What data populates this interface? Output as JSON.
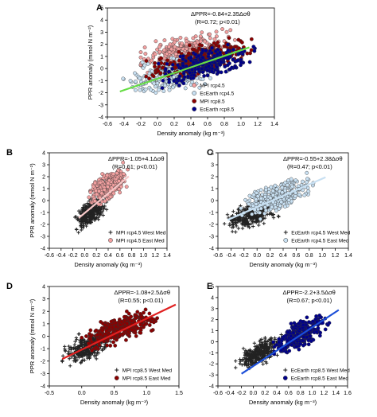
{
  "chart_data": [
    {
      "panel": "A",
      "type": "scatter",
      "xlabel": "Density anomaly (kg m⁻³)",
      "ylabel": "PPR anomaly (mmol N m⁻²)",
      "xlim": [
        -0.6,
        1.4
      ],
      "ylim": [
        -4,
        5
      ],
      "xticks": [
        -0.6,
        -0.4,
        -0.2,
        0.0,
        0.2,
        0.4,
        0.6,
        0.8,
        1.0,
        1.2,
        1.4
      ],
      "yticks": [
        -4,
        -3,
        -2,
        -1,
        0,
        1,
        2,
        3,
        4,
        5
      ],
      "equation": "ΔPPR=-0.84+2.35Δσθ",
      "stats": "(R=0.72; p<0.01)",
      "legend_position": "bottom-right",
      "series": [
        {
          "name": "MPI rcp4.5",
          "marker": "circle",
          "color": "#f2a0a0",
          "x_range": [
            -0.2,
            1.1
          ],
          "center": [
            0.3,
            1.4
          ],
          "spread": 1.0
        },
        {
          "name": "EcEarth rcp4.5",
          "marker": "circle",
          "color": "#c8e0f2",
          "x_range": [
            -0.5,
            0.9
          ],
          "center": [
            0.2,
            -0.5
          ],
          "spread": 1.1
        },
        {
          "name": "MPI rcp8.5",
          "marker": "circle",
          "color": "#8b0000",
          "x_range": [
            -0.2,
            1.2
          ],
          "center": [
            0.5,
            0.8
          ],
          "spread": 0.9
        },
        {
          "name": "EcEarth rcp8.5",
          "marker": "circle",
          "color": "#00008b",
          "x_range": [
            -0.1,
            1.2
          ],
          "center": [
            0.6,
            0.4
          ],
          "spread": 0.9
        }
      ],
      "fit": {
        "intercept": -0.84,
        "slope": 2.35,
        "x_from": -0.45,
        "x_to": 1.1,
        "color": "#66dd44"
      }
    },
    {
      "panel": "B",
      "type": "scatter",
      "xlabel": "Density anomaly (kg m⁻³)",
      "ylabel": "PPR anomaly (mmol N m⁻²)",
      "xlim": [
        -0.6,
        1.4
      ],
      "ylim": [
        -4,
        4
      ],
      "xticks": [
        -0.6,
        -0.4,
        -0.2,
        0.0,
        0.2,
        0.4,
        0.6,
        0.8,
        1.0,
        1.2,
        1.4
      ],
      "yticks": [
        -4,
        -3,
        -2,
        -1,
        0,
        1,
        2,
        3,
        4
      ],
      "equation": "ΔPPR=-1.05+4.1Δσθ",
      "stats": "(R=0.61; p<0.01)",
      "legend_position": "bottom-right",
      "series": [
        {
          "name": "MPI rcp4.5 West Med",
          "marker": "cross",
          "color": "#222222",
          "x_range": [
            -0.2,
            0.4
          ],
          "center": [
            0.1,
            -1.0
          ],
          "spread": 0.8
        },
        {
          "name": "MPI rcp4.5 East Med",
          "marker": "circle",
          "color": "#f2a0a0",
          "x_range": [
            0.0,
            0.75
          ],
          "center": [
            0.4,
            1.2
          ],
          "spread": 0.9
        }
      ],
      "fit": {
        "intercept": -1.05,
        "slope": 4.1,
        "x_from": -0.1,
        "x_to": 0.75,
        "color": "#f6c8c8"
      }
    },
    {
      "panel": "C",
      "type": "scatter",
      "xlabel": "Density anomaly (kg m⁻³)",
      "ylabel": "",
      "xlim": [
        -0.6,
        1.4
      ],
      "ylim": [
        -4,
        4
      ],
      "xticks": [
        -0.6,
        -0.4,
        -0.2,
        0.0,
        0.2,
        0.4,
        0.6,
        0.8,
        1.0,
        1.2,
        1.4
      ],
      "yticks": [
        -4,
        -3,
        -2,
        -1,
        0,
        1,
        2,
        3,
        4
      ],
      "equation": "ΔPPR=-0.55+2.38Δσθ",
      "stats": "(R=0.47; p<0.01)",
      "legend_position": "bottom-right",
      "series": [
        {
          "name": "EcEarth rcp4.5 West Med",
          "marker": "cross",
          "color": "#222222",
          "x_range": [
            -0.5,
            0.4
          ],
          "center": [
            -0.1,
            -1.2
          ],
          "spread": 0.8
        },
        {
          "name": "EcEarth rcp4.5 East Med",
          "marker": "circle",
          "color": "#c8e0f2",
          "x_range": [
            -0.3,
            0.9
          ],
          "center": [
            0.3,
            0.3
          ],
          "spread": 0.9
        }
      ],
      "fit": {
        "intercept": -0.55,
        "slope": 2.38,
        "x_from": -0.45,
        "x_to": 1.05,
        "color": "#c8e0f2"
      }
    },
    {
      "panel": "D",
      "type": "scatter",
      "xlabel": "Density anomaly (kg m⁻³)",
      "ylabel": "PPR anomaly (mmol N m⁻²)",
      "xlim": [
        -0.5,
        1.5
      ],
      "ylim": [
        -4,
        4
      ],
      "xticks": [
        -0.5,
        0.0,
        0.5,
        1.0,
        1.5
      ],
      "yticks": [
        -4,
        -3,
        -2,
        -1,
        0,
        1,
        2,
        3,
        4
      ],
      "equation": "ΔPPR=-1.08+2.5Δσθ",
      "stats": "(R=0.55; p<0.01)",
      "legend_position": "bottom-right",
      "series": [
        {
          "name": "MPI rcp8.5 West Med",
          "marker": "cross",
          "color": "#222222",
          "x_range": [
            -0.3,
            0.6
          ],
          "center": [
            0.1,
            -0.9
          ],
          "spread": 0.8
        },
        {
          "name": "MPI rcp8.5 East Med",
          "marker": "circle",
          "color": "#8b0000",
          "x_range": [
            0.0,
            1.3
          ],
          "center": [
            0.6,
            0.6
          ],
          "spread": 0.8
        }
      ],
      "fit": {
        "intercept": -1.08,
        "slope": 2.5,
        "x_from": -0.3,
        "x_to": 1.45,
        "color": "#e02020"
      }
    },
    {
      "panel": "E",
      "type": "scatter",
      "xlabel": "Density anomaly (kg m⁻³)",
      "ylabel": "",
      "xlim": [
        -0.6,
        1.6
      ],
      "ylim": [
        -4,
        5
      ],
      "xticks": [
        -0.6,
        -0.4,
        -0.2,
        0.0,
        0.2,
        0.4,
        0.6,
        0.8,
        1.0,
        1.2,
        1.4,
        1.6
      ],
      "yticks": [
        -4,
        -3,
        -2,
        -1,
        0,
        1,
        2,
        3,
        4,
        5
      ],
      "equation": "ΔPPR=-2.2+3.5Δσθ",
      "stats": "(R=0.67; p<0.01)",
      "legend_position": "bottom-right",
      "series": [
        {
          "name": "EcEarth rcp8.5 West Med",
          "marker": "cross",
          "color": "#222222",
          "x_range": [
            -0.3,
            0.6
          ],
          "center": [
            0.1,
            -1.0
          ],
          "spread": 0.8
        },
        {
          "name": "EcEarth rcp8.5 East Med",
          "marker": "circle",
          "color": "#00008b",
          "x_range": [
            0.2,
            1.3
          ],
          "center": [
            0.8,
            0.7
          ],
          "spread": 0.9
        }
      ],
      "fit": {
        "intercept": -2.2,
        "slope": 3.5,
        "x_from": -0.2,
        "x_to": 1.45,
        "color": "#1c4fd8"
      }
    }
  ]
}
